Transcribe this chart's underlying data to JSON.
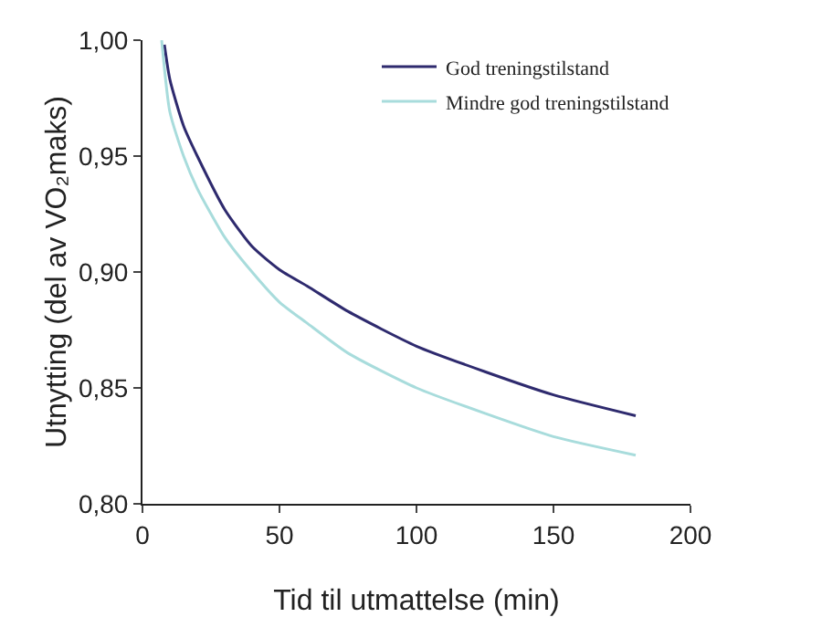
{
  "chart_data": {
    "type": "line",
    "xlabel": "Tid til utmattelse (min)",
    "ylabel": "Utnytting (del av VO₂maks)",
    "series": [
      {
        "name": "God treningstilstand",
        "color": "#2e2a6e",
        "x": [
          8,
          10,
          15,
          20,
          30,
          40,
          50,
          60,
          75,
          100,
          125,
          150,
          180
        ],
        "values": [
          0.998,
          0.983,
          0.963,
          0.95,
          0.927,
          0.911,
          0.901,
          0.894,
          0.883,
          0.868,
          0.857,
          0.847,
          0.838
        ]
      },
      {
        "name": "Mindre god treningstilstand",
        "color": "#a8dcdc",
        "x": [
          7,
          10,
          15,
          20,
          30,
          40,
          50,
          60,
          75,
          100,
          125,
          150,
          180
        ],
        "values": [
          1.0,
          0.969,
          0.95,
          0.936,
          0.915,
          0.9,
          0.887,
          0.878,
          0.865,
          0.85,
          0.839,
          0.829,
          0.821
        ]
      }
    ],
    "xlim": [
      0,
      200
    ],
    "xticks": [
      0,
      50,
      100,
      150,
      200
    ],
    "ylim": [
      0.8,
      1.0
    ],
    "yticks": [
      {
        "value": 0.8,
        "label": "0,80"
      },
      {
        "value": 0.85,
        "label": "0,85"
      },
      {
        "value": 0.9,
        "label": "0,90"
      },
      {
        "value": 0.95,
        "label": "0,95"
      },
      {
        "value": 1.0,
        "label": "1,00"
      }
    ],
    "grid": false,
    "legend": "top right",
    "marker": "none",
    "line_style": "solid"
  }
}
